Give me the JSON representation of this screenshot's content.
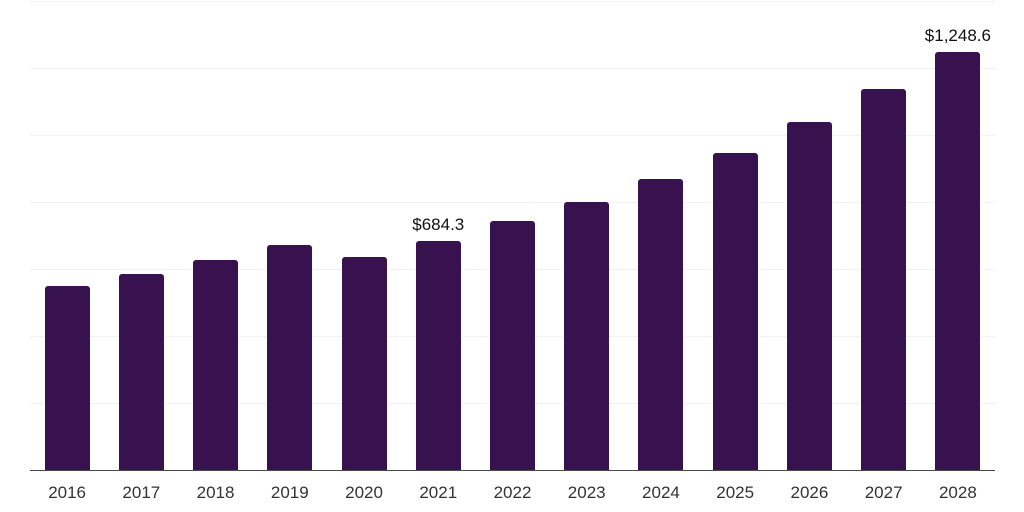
{
  "chart_data": {
    "type": "bar",
    "title": "",
    "xlabel": "",
    "ylabel": "",
    "categories": [
      "2016",
      "2017",
      "2018",
      "2019",
      "2020",
      "2021",
      "2022",
      "2023",
      "2024",
      "2025",
      "2026",
      "2027",
      "2028"
    ],
    "values": [
      550,
      585,
      627,
      671,
      636,
      684.3,
      742,
      799,
      868,
      947,
      1038,
      1136,
      1248.6
    ],
    "value_labels": {
      "2021": "$684.3",
      "2028": "$1,248.6"
    },
    "ylim": [
      0,
      1400
    ],
    "grid_step": 200,
    "grid": "horizontal",
    "legend_position": "none"
  },
  "colors": {
    "bar": "#37124E",
    "gridline": "#F2F2F2",
    "axis_line": "#4A4A4A",
    "tick_label": "#333333",
    "data_label": "#111111",
    "background": "#FFFFFF"
  }
}
